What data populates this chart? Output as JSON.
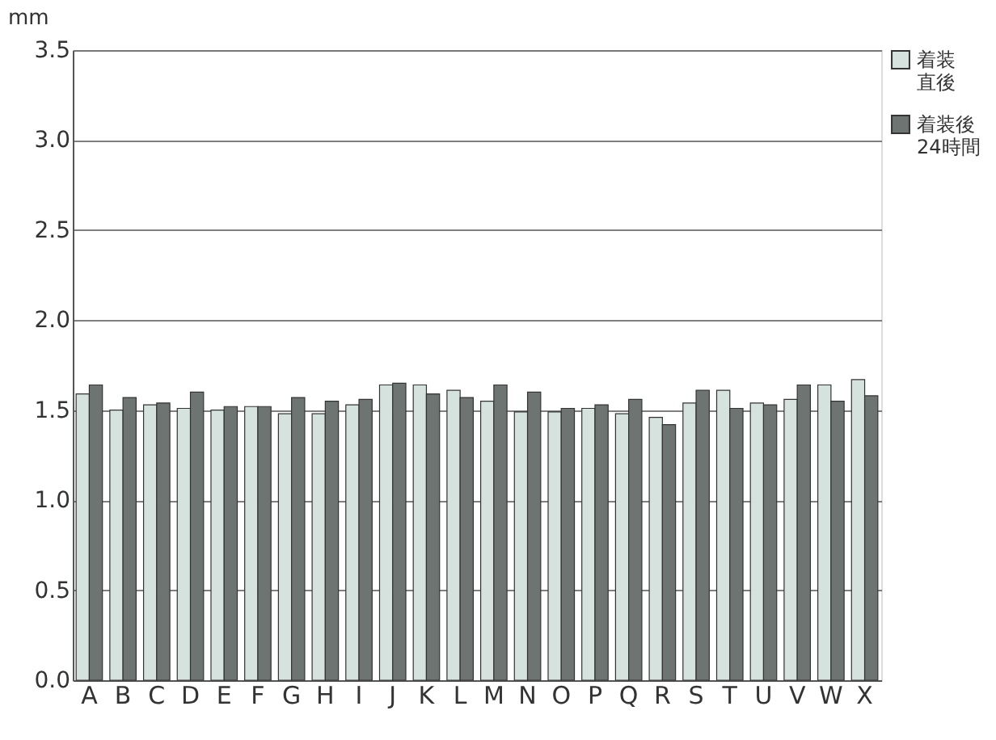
{
  "chart_data": {
    "type": "bar",
    "ylabel": "mm",
    "categories": [
      "A",
      "B",
      "C",
      "D",
      "E",
      "F",
      "G",
      "H",
      "I",
      "J",
      "K",
      "L",
      "M",
      "N",
      "O",
      "P",
      "Q",
      "R",
      "S",
      "T",
      "U",
      "V",
      "W",
      "X"
    ],
    "series": [
      {
        "name": "着装直後",
        "color": "#d6e2dd",
        "values": [
          1.59,
          1.5,
          1.53,
          1.51,
          1.5,
          1.52,
          1.48,
          1.48,
          1.53,
          1.64,
          1.64,
          1.61,
          1.55,
          1.49,
          1.49,
          1.51,
          1.48,
          1.46,
          1.54,
          1.61,
          1.54,
          1.56,
          1.64,
          1.67
        ]
      },
      {
        "name": "着装後24時間",
        "color": "#6e7471",
        "values": [
          1.64,
          1.57,
          1.54,
          1.6,
          1.52,
          1.52,
          1.57,
          1.55,
          1.56,
          1.65,
          1.59,
          1.57,
          1.64,
          1.6,
          1.51,
          1.53,
          1.56,
          1.42,
          1.61,
          1.51,
          1.53,
          1.64,
          1.55,
          1.58
        ]
      }
    ],
    "ylim": [
      0,
      3.5
    ],
    "yticks": [
      {
        "value": 0,
        "label": "0.0"
      },
      0.5,
      {
        "value": 1,
        "label": "1.0"
      },
      1.5,
      {
        "value": 2,
        "label": "2.0"
      },
      2.5,
      {
        "value": 3,
        "label": "3.0"
      },
      3.5
    ],
    "grid": "y",
    "legend": "top right"
  }
}
